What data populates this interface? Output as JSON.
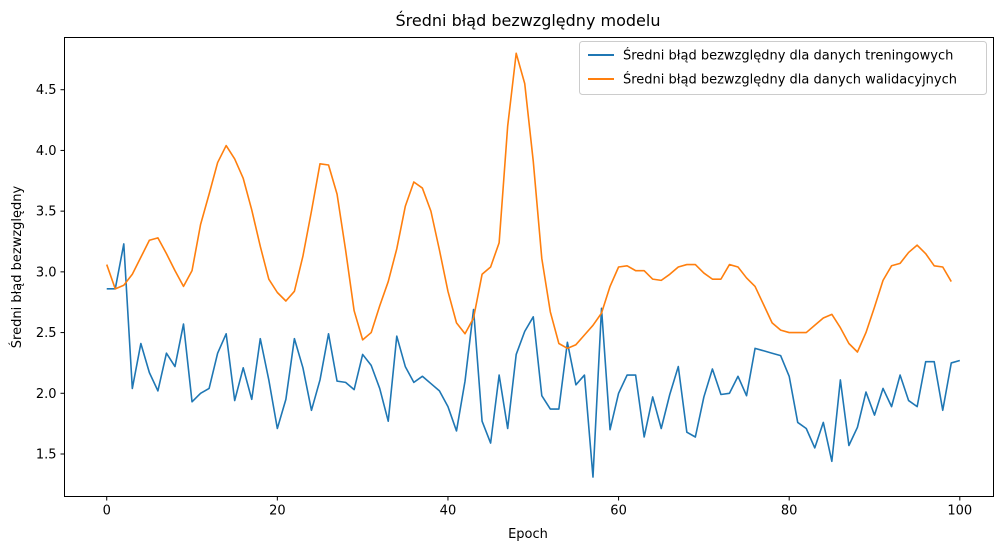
{
  "chart_data": {
    "type": "line",
    "title": "Średni błąd bezwzględny modelu",
    "xlabel": "Epoch",
    "ylabel": "Średni błąd bezwzględny",
    "xlim": [
      -4.95,
      103.95
    ],
    "ylim": [
      1.15,
      4.93
    ],
    "grid": false,
    "legend_position": "top-right",
    "x_ticks": [
      0,
      20,
      40,
      60,
      80,
      100
    ],
    "x_tick_labels": [
      "0",
      "20",
      "40",
      "60",
      "80",
      "100"
    ],
    "y_ticks": [
      1.5,
      2.0,
      2.5,
      3.0,
      3.5,
      4.0,
      4.5
    ],
    "y_tick_labels": [
      "1.5",
      "2.0",
      "2.5",
      "3.0",
      "3.5",
      "4.0",
      "4.5"
    ],
    "series": [
      {
        "name": "Średni błąd bezwzględny dla danych treningowych",
        "color": "#1f77b4",
        "values": [
          2.86,
          2.86,
          3.23,
          2.04,
          2.41,
          2.17,
          2.02,
          2.33,
          2.22,
          2.57,
          1.93,
          2.0,
          2.04,
          2.33,
          2.49,
          1.94,
          2.21,
          1.95,
          2.45,
          2.11,
          1.71,
          1.95,
          2.45,
          2.21,
          1.86,
          2.11,
          2.49,
          2.1,
          2.09,
          2.03,
          2.32,
          2.23,
          2.04,
          1.77,
          2.47,
          2.22,
          2.09,
          2.14,
          2.08,
          2.02,
          1.89,
          1.69,
          2.1,
          2.69,
          1.77,
          1.59,
          2.15,
          1.71,
          2.32,
          2.51,
          2.63,
          1.98,
          1.87,
          1.87,
          2.42,
          2.07,
          2.15,
          1.31,
          2.7,
          1.7,
          2.0,
          2.15,
          2.15,
          1.64,
          1.97,
          1.71,
          1.99,
          2.22,
          1.68,
          1.64,
          1.97,
          2.2,
          1.99,
          2.0,
          2.14,
          1.98,
          2.37,
          2.35,
          2.33,
          2.31,
          2.14,
          1.76,
          1.71,
          1.55,
          1.76,
          1.44,
          2.11,
          1.57,
          1.72,
          2.01,
          1.82,
          2.04,
          1.89,
          2.15,
          1.94,
          1.89,
          2.26,
          2.26,
          1.86,
          2.25,
          2.27
        ]
      },
      {
        "name": "Średni błąd bezwzględny dla danych walidacyjnych",
        "color": "#ff7f0e",
        "values": [
          3.06,
          2.86,
          2.89,
          2.98,
          3.12,
          3.26,
          3.28,
          3.15,
          3.01,
          2.88,
          3.01,
          3.39,
          3.64,
          3.9,
          4.04,
          3.93,
          3.77,
          3.51,
          3.21,
          2.94,
          2.83,
          2.76,
          2.84,
          3.13,
          3.5,
          3.89,
          3.88,
          3.64,
          3.18,
          2.68,
          2.44,
          2.5,
          2.72,
          2.92,
          3.19,
          3.54,
          3.74,
          3.69,
          3.5,
          3.18,
          2.84,
          2.58,
          2.49,
          2.62,
          2.98,
          3.04,
          3.24,
          4.2,
          4.8,
          4.55,
          3.91,
          3.11,
          2.67,
          2.41,
          2.37,
          2.4,
          2.48,
          2.56,
          2.66,
          2.88,
          3.04,
          3.05,
          3.01,
          3.01,
          2.94,
          2.93,
          2.98,
          3.04,
          3.06,
          3.06,
          2.99,
          2.94,
          2.94,
          3.06,
          3.04,
          2.95,
          2.88,
          2.73,
          2.58,
          2.52,
          2.5,
          2.5,
          2.5,
          2.56,
          2.62,
          2.65,
          2.54,
          2.41,
          2.34,
          2.5,
          2.71,
          2.93,
          3.05,
          3.07,
          3.16,
          3.22,
          3.15,
          3.05,
          3.04,
          2.92,
          null
        ]
      }
    ]
  }
}
